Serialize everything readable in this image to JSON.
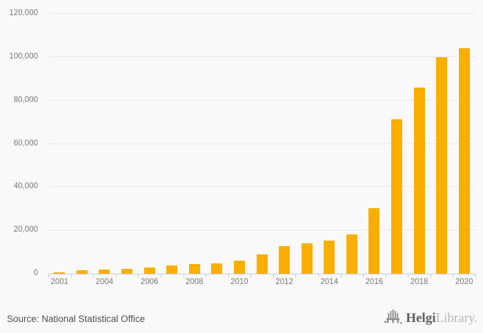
{
  "chart_data": {
    "type": "bar",
    "title": "",
    "xlabel": "",
    "ylabel": "",
    "categories": [
      "2001",
      "2003",
      "2004",
      "2005",
      "2006",
      "2007",
      "2008",
      "2009",
      "2010",
      "2011",
      "2012",
      "2013",
      "2014",
      "2015",
      "2016",
      "2017",
      "2018",
      "2019",
      "2020"
    ],
    "values": [
      700,
      1450,
      1800,
      2250,
      2900,
      3800,
      4350,
      4900,
      5950,
      8800,
      12600,
      13900,
      15400,
      18100,
      30100,
      71300,
      86000,
      100000,
      104000
    ],
    "x_tick_labels": [
      "2001",
      "2004",
      "2006",
      "2008",
      "2010",
      "2012",
      "2014",
      "2016",
      "2018",
      "2020"
    ],
    "x_tick_cells": [
      0,
      2,
      4,
      6,
      8,
      10,
      12,
      14,
      16,
      18
    ],
    "y_tick_labels": [
      "0",
      "20,000",
      "40,000",
      "60,000",
      "80,000",
      "100,000",
      "120,000"
    ],
    "y_tick_values": [
      0,
      20000,
      40000,
      60000,
      80000,
      100000,
      120000
    ],
    "ylim": [
      0,
      120000
    ],
    "grid": true,
    "legend": false,
    "bar_color": "#FAAE00"
  },
  "colors": {
    "background": "#f9f9f9",
    "bar": "#FAAE00",
    "gridline": "#e8e8e8",
    "axis": "#c6cde0",
    "tick_label": "#777777",
    "source_text": "#4d4d4d",
    "logo_dark": "#5f5f5f",
    "logo_light": "#b5b5b5",
    "logo_icon": "#8f8f8f"
  },
  "footer": {
    "source": "Source: National Statistical Office",
    "logo_brand_bold": "Helgi",
    "logo_brand_light": "Library."
  }
}
